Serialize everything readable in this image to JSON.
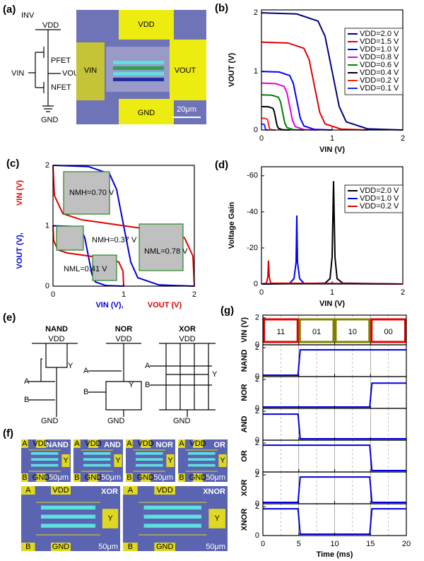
{
  "chart_data": [
    {
      "type": "line",
      "panel": "(b)",
      "xlabel": "VIN (V)",
      "ylabel": "VOUT (V)",
      "xlim": [
        0,
        2
      ],
      "ylim": [
        0,
        2.05
      ],
      "xticks": [
        0,
        1,
        2
      ],
      "yticks": [
        0,
        1,
        2
      ],
      "legend": "right",
      "series": [
        {
          "name": "VDD=2.0 V",
          "color": "#000080",
          "x": [
            0,
            0.5,
            0.8,
            0.9,
            1.0,
            1.1,
            1.2,
            1.5,
            2.0
          ],
          "values": [
            2,
            1.98,
            1.86,
            1.6,
            1.0,
            0.4,
            0.14,
            0.02,
            0
          ]
        },
        {
          "name": "VDD=1.5 V",
          "color": "#e00000",
          "x": [
            0,
            0.375,
            0.6,
            0.675,
            0.75,
            0.825,
            0.9,
            1.125,
            1.5
          ],
          "values": [
            1.5,
            1.485,
            1.395,
            1.2,
            0.75,
            0.3,
            0.105,
            0.015,
            0
          ]
        },
        {
          "name": "VDD=1.0 V",
          "color": "#0000ff",
          "x": [
            0,
            0.25,
            0.4,
            0.45,
            0.5,
            0.55,
            0.6,
            0.75,
            1.0
          ],
          "values": [
            1,
            0.99,
            0.93,
            0.8,
            0.5,
            0.2,
            0.07,
            0.01,
            0
          ]
        },
        {
          "name": "VDD=0.8 V",
          "color": "#e000e0",
          "x": [
            0,
            0.2,
            0.32,
            0.36,
            0.4,
            0.44,
            0.48,
            0.6,
            0.8
          ],
          "values": [
            0.8,
            0.792,
            0.744,
            0.64,
            0.4,
            0.16,
            0.056,
            0.008,
            0
          ]
        },
        {
          "name": "VDD=0.6 V",
          "color": "#008000",
          "x": [
            0,
            0.15,
            0.24,
            0.27,
            0.3,
            0.33,
            0.36,
            0.45,
            0.6
          ],
          "values": [
            0.6,
            0.594,
            0.558,
            0.48,
            0.3,
            0.12,
            0.042,
            0.006,
            0
          ]
        },
        {
          "name": "VDD=0.4 V",
          "color": "#000000",
          "x": [
            0,
            0.1,
            0.16,
            0.18,
            0.2,
            0.22,
            0.24,
            0.3,
            0.4
          ],
          "values": [
            0.4,
            0.396,
            0.372,
            0.32,
            0.2,
            0.08,
            0.028,
            0.004,
            0
          ]
        },
        {
          "name": "VDD=0.2 V",
          "color": "#ff2020",
          "x": [
            0,
            0.05,
            0.08,
            0.09,
            0.1,
            0.11,
            0.12,
            0.15,
            0.2
          ],
          "values": [
            0.2,
            0.198,
            0.186,
            0.16,
            0.1,
            0.04,
            0.014,
            0.002,
            0
          ]
        },
        {
          "name": "VDD=0.1 V",
          "color": "#2020ff",
          "x": [
            0,
            0.025,
            0.04,
            0.045,
            0.05,
            0.055,
            0.06,
            0.075,
            0.1
          ],
          "values": [
            0.1,
            0.099,
            0.093,
            0.08,
            0.05,
            0.02,
            0.007,
            0.001,
            0
          ]
        }
      ]
    },
    {
      "type": "line",
      "panel": "(c)",
      "xlabel": [
        {
          "text": "VIN (V),",
          "color": "#0000dd"
        },
        {
          "text": "VOUT (V)",
          "color": "#e00000"
        }
      ],
      "ylabel": [
        {
          "text": "VOUT (V),",
          "color": "#0000dd"
        },
        {
          "text": "VIN (V)",
          "color": "#e00000"
        }
      ],
      "xlim": [
        0,
        2
      ],
      "ylim": [
        0,
        2
      ],
      "xticks": [
        0,
        1,
        2
      ],
      "yticks": [
        0,
        1,
        2
      ],
      "annotations": [
        "NMH=0.70 V",
        "NML=0.78 V",
        "NMH=0.37 V",
        "NML=0.41 V"
      ],
      "series": [
        {
          "color": "#0000dd",
          "x": [
            0,
            0.5,
            0.8,
            0.9,
            1.0,
            1.1,
            1.2,
            1.5,
            2.0
          ],
          "values": [
            2,
            1.98,
            1.86,
            1.6,
            1.0,
            0.4,
            0.14,
            0.02,
            0
          ]
        },
        {
          "color": "#0000dd",
          "x": [
            0,
            0.25,
            0.4,
            0.45,
            0.5,
            0.55,
            0.6,
            0.75,
            1.0
          ],
          "values": [
            1,
            0.99,
            0.93,
            0.8,
            0.5,
            0.2,
            0.07,
            0.01,
            0
          ]
        },
        {
          "color": "#e00000",
          "x": [
            2,
            1.98,
            1.86,
            1.6,
            1.0,
            0.4,
            0.14,
            0.02,
            0
          ],
          "values": [
            0,
            0.5,
            0.8,
            0.9,
            1.0,
            1.1,
            1.2,
            1.5,
            2.0
          ]
        },
        {
          "color": "#e00000",
          "x": [
            1,
            0.99,
            0.93,
            0.8,
            0.5,
            0.2,
            0.07,
            0.01,
            0
          ],
          "values": [
            0,
            0.25,
            0.4,
            0.45,
            0.5,
            0.55,
            0.6,
            0.75,
            1.0
          ]
        }
      ]
    },
    {
      "type": "line",
      "panel": "(d)",
      "xlabel": "VIN (V)",
      "ylabel": "Voltage Gain",
      "xlim": [
        0,
        2
      ],
      "ylim": [
        0,
        -65
      ],
      "xticks": [
        0,
        1,
        2
      ],
      "yticks": [
        -60,
        -40,
        -20,
        0
      ],
      "legend": "right",
      "series": [
        {
          "name": "VDD=2.0 V",
          "color": "#000000",
          "x": [
            0,
            0.9,
            0.97,
            1.0,
            1.02,
            1.04,
            1.07,
            1.15,
            2.0
          ],
          "values": [
            0,
            -0.5,
            -3,
            -15,
            -57,
            -15,
            -3,
            -0.5,
            0
          ]
        },
        {
          "name": "VDD=1.0 V",
          "color": "#0000ff",
          "x": [
            0,
            0.4,
            0.46,
            0.49,
            0.5,
            0.51,
            0.54,
            0.6,
            2.0
          ],
          "values": [
            0,
            -0.4,
            -3,
            -12,
            -38,
            -12,
            -3,
            -0.4,
            0
          ]
        },
        {
          "name": "VDD=0.2 V",
          "color": "#e00000",
          "x": [
            0,
            0.07,
            0.09,
            0.1,
            0.11,
            0.13,
            2.0
          ],
          "values": [
            0,
            -0.5,
            -4,
            -13,
            -4,
            -0.5,
            0
          ]
        }
      ]
    },
    {
      "type": "timing",
      "panel": "(g)",
      "xlabel": "Time (ms)",
      "xlim": [
        0,
        20
      ],
      "xticks": [
        0,
        5,
        10,
        15,
        20
      ],
      "xminor": [
        2.5,
        7.5,
        12.5,
        17.5
      ],
      "ylim": [
        0,
        2.2
      ],
      "yticks": [
        0,
        2
      ],
      "input": {
        "ylabel": "VIN (V)",
        "segments": [
          {
            "label": "11",
            "color": "#e00000",
            "start": 0,
            "end": 5
          },
          {
            "label": "01",
            "color": "#808000",
            "start": 5,
            "end": 10
          },
          {
            "label": "10",
            "color": "#808000",
            "start": 10,
            "end": 15
          },
          {
            "label": "00",
            "color": "#e00000",
            "start": 15,
            "end": 20
          }
        ]
      },
      "series": [
        {
          "name": "NAND",
          "color": "#0000dd",
          "x": [
            0,
            4.9,
            5.2,
            20
          ],
          "values": [
            0.1,
            0.1,
            1.85,
            1.85
          ]
        },
        {
          "name": "NOR",
          "color": "#0000dd",
          "x": [
            0,
            14.9,
            15.2,
            20
          ],
          "values": [
            0.1,
            0.1,
            1.75,
            1.75
          ]
        },
        {
          "name": "AND",
          "color": "#0000dd",
          "x": [
            0,
            4.9,
            5.2,
            20
          ],
          "values": [
            1.8,
            1.8,
            0.1,
            0.1
          ]
        },
        {
          "name": "OR",
          "color": "#0000dd",
          "x": [
            0,
            14.9,
            15.2,
            20
          ],
          "values": [
            1.85,
            1.85,
            0.1,
            0.1
          ]
        },
        {
          "name": "XOR",
          "color": "#0000dd",
          "x": [
            0,
            4.9,
            5.2,
            14.9,
            15.2,
            20
          ],
          "values": [
            0.1,
            0.1,
            1.85,
            1.85,
            0.1,
            0.1
          ]
        },
        {
          "name": "XNOR",
          "color": "#0000dd",
          "x": [
            0,
            4.9,
            5.2,
            14.9,
            15.2,
            20
          ],
          "values": [
            1.85,
            1.85,
            0.1,
            0.1,
            1.85,
            1.85
          ]
        }
      ]
    }
  ],
  "schematics": {
    "a": {
      "panel": "(a)",
      "inv": "INV",
      "vdd": "VDD",
      "pfet": "PFET",
      "vin": "VIN",
      "vout": "VOUT",
      "nfet": "NFET",
      "gnd": "GND",
      "micro_vdd": "VDD",
      "micro_vin": "VIN",
      "micro_vout": "VOUT",
      "micro_gnd": "GND",
      "scale": "20μm"
    },
    "e": {
      "panel": "(e)",
      "gates": [
        {
          "name": "NAND",
          "vdd": "VDD",
          "a": "A",
          "b": "B",
          "y": "Y",
          "gnd": "GND"
        },
        {
          "name": "NOR",
          "vdd": "VDD",
          "a": "A",
          "b": "B",
          "y": "Y",
          "gnd": "GND"
        },
        {
          "name": "XOR",
          "vdd": "VDD",
          "a": "A",
          "b": "B",
          "y": "Y",
          "gnd": "GND"
        }
      ]
    },
    "f": {
      "panel": "(f)",
      "chips": [
        {
          "name": "NAND",
          "scale": "50μm"
        },
        {
          "name": "AND",
          "scale": "50μm"
        },
        {
          "name": "NOR",
          "scale": "50μm"
        },
        {
          "name": "OR",
          "scale": "50μm"
        },
        {
          "name": "XOR",
          "scale": "50μm"
        },
        {
          "name": "XNOR",
          "scale": "50μm"
        }
      ],
      "pads": [
        "A",
        "B",
        "VDD",
        "GND",
        "Y"
      ]
    }
  }
}
